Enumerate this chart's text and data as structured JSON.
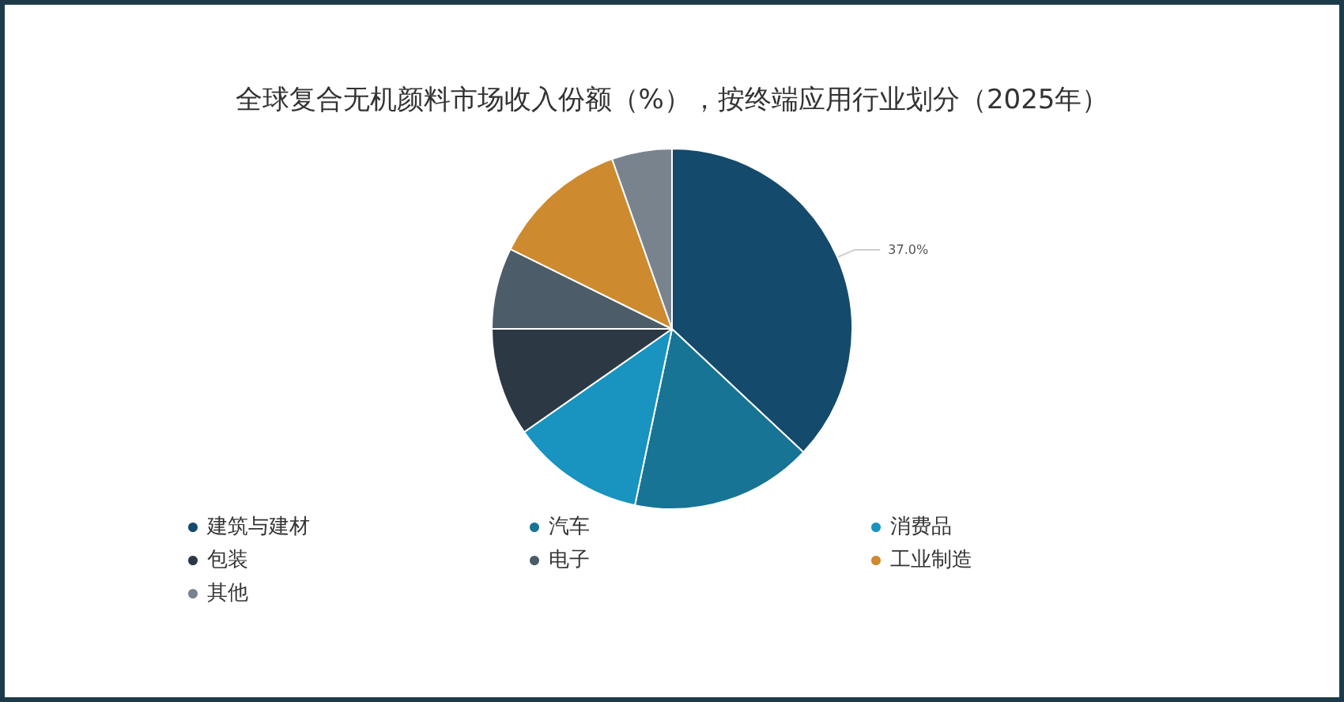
{
  "chart_data": {
    "type": "pie",
    "title": "全球复合无机颜料市场收入份额（%），按终端应用行业划分（2025年）",
    "categories": [
      "建筑与建材",
      "汽车",
      "消费品",
      "包装",
      "电子",
      "工业制造",
      "其他"
    ],
    "values": [
      37.0,
      16.3,
      12.0,
      9.7,
      7.3,
      12.3,
      5.4
    ],
    "colors": [
      "#144a6c",
      "#177495",
      "#1993bf",
      "#2c3944",
      "#4c5d69",
      "#cd8a2f",
      "#79838e"
    ],
    "value_labels": [
      "37.0%",
      null,
      null,
      null,
      null,
      null,
      null
    ],
    "legend": "bottom"
  }
}
